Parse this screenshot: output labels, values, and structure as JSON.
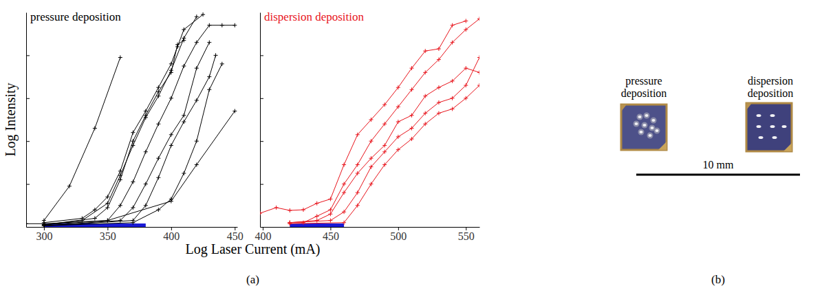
{
  "chart_data": [
    {
      "type": "line",
      "title": "pressure deposition",
      "color": "#000000",
      "marker": "plus",
      "xlim": [
        286,
        452
      ],
      "xticks": [
        300,
        350,
        400,
        450
      ],
      "ylim": [
        0,
        10
      ],
      "yticks": [
        2,
        4,
        6,
        8
      ],
      "tick_labels": "x",
      "highlight": {
        "range": [
          300,
          380
        ],
        "color": "#1a1ad6"
      },
      "series": [
        {
          "x": [
            300,
            320,
            340,
            360
          ],
          "values": [
            0.3,
            1.9,
            4.6,
            7.9
          ]
        },
        {
          "x": [
            300,
            330,
            340,
            350,
            360,
            370,
            380,
            390,
            400,
            405,
            410,
            425
          ],
          "values": [
            0.2,
            0.4,
            0.8,
            1.4,
            2.6,
            4.4,
            5.4,
            6.5,
            7.6,
            8.4,
            9.2,
            9.9
          ]
        },
        {
          "x": [
            300,
            330,
            350,
            360,
            370,
            380,
            390,
            400,
            410,
            420
          ],
          "values": [
            0.1,
            0.3,
            1.1,
            2.4,
            3.8,
            5.1,
            6.1,
            7.3,
            8.8,
            9.8
          ]
        },
        {
          "x": [
            300,
            340,
            350,
            360,
            370,
            380,
            390,
            400,
            405,
            410
          ],
          "values": [
            0.1,
            0.4,
            0.9,
            2.2,
            4.0,
            5.2,
            6.3,
            7.2,
            8.5,
            8.7
          ]
        },
        {
          "x": [
            300,
            350,
            360,
            370,
            380,
            390,
            400,
            410,
            420,
            430,
            440,
            450
          ],
          "values": [
            0.1,
            0.3,
            1.0,
            2.1,
            3.5,
            4.8,
            6.0,
            7.5,
            8.6,
            9.4,
            9.4,
            9.4
          ]
        },
        {
          "x": [
            300,
            360,
            370,
            380,
            390,
            400,
            410,
            420,
            430
          ],
          "values": [
            0.05,
            0.3,
            0.9,
            2.0,
            3.2,
            4.3,
            5.2,
            7.4,
            8.6
          ]
        },
        {
          "x": [
            300,
            370,
            380,
            390,
            400,
            410,
            420,
            430,
            435
          ],
          "values": [
            0.05,
            0.3,
            1.0,
            2.3,
            3.8,
            4.9,
            5.9,
            7.0,
            8.0
          ]
        },
        {
          "x": [
            300,
            370,
            390,
            400,
            410,
            420,
            430,
            440
          ],
          "values": [
            0.05,
            0.2,
            0.8,
            1.3,
            2.5,
            4.0,
            6.4,
            7.6
          ]
        },
        {
          "x": [
            286,
            300,
            350,
            400,
            420,
            450
          ],
          "values": [
            0.15,
            0.15,
            0.3,
            1.2,
            2.9,
            5.4
          ]
        }
      ]
    },
    {
      "type": "line",
      "title": "dispersion deposition",
      "color": "#e8141c",
      "marker": "plus",
      "xlim": [
        398,
        560
      ],
      "xticks": [
        400,
        450,
        500,
        550
      ],
      "ylim": [
        0,
        10
      ],
      "yticks": [
        2,
        4,
        6,
        8
      ],
      "tick_labels": "x",
      "highlight": {
        "range": [
          420,
          460
        ],
        "color": "#1a1ad6"
      },
      "series": [
        {
          "x": [
            398,
            410,
            420,
            430,
            440,
            450,
            460,
            470,
            480,
            490,
            500,
            510,
            520,
            530,
            540,
            550
          ],
          "values": [
            0.64,
            0.9,
            0.77,
            0.8,
            1.1,
            1.3,
            2.9,
            4.3,
            5.0,
            5.7,
            6.5,
            7.4,
            8.2,
            8.3,
            9.4,
            9.6
          ]
        },
        {
          "x": [
            420,
            430,
            440,
            450,
            460,
            470,
            480,
            490,
            500,
            510,
            520,
            530,
            540,
            550,
            560
          ],
          "values": [
            0.2,
            0.2,
            0.5,
            0.8,
            2.0,
            2.9,
            4.0,
            4.8,
            5.6,
            6.4,
            7.2,
            7.8,
            8.6,
            9.2,
            9.7
          ]
        },
        {
          "x": [
            420,
            440,
            450,
            460,
            470,
            480,
            490,
            500,
            510,
            520,
            530,
            540,
            550,
            560
          ],
          "values": [
            0.2,
            0.3,
            0.6,
            1.6,
            2.5,
            3.2,
            3.8,
            4.9,
            5.2,
            6.1,
            6.5,
            6.8,
            7.4,
            7.2
          ]
        },
        {
          "x": [
            420,
            450,
            460,
            470,
            480,
            490,
            500,
            510,
            520,
            530,
            540,
            550,
            560
          ],
          "values": [
            0.2,
            0.3,
            0.7,
            1.6,
            2.8,
            3.5,
            4.2,
            4.6,
            5.3,
            5.8,
            6.0,
            6.6,
            7.9
          ]
        },
        {
          "x": [
            420,
            460,
            470,
            480,
            490,
            500,
            510,
            520,
            530,
            540,
            550,
            560
          ],
          "values": [
            0.15,
            0.2,
            1.0,
            2.0,
            2.9,
            3.6,
            4.1,
            4.8,
            5.3,
            5.5,
            6.0,
            6.6
          ]
        }
      ]
    }
  ],
  "figure": {
    "xlabel": "Log Laser Current (mA)",
    "ylabel": "Log Intensity",
    "panel_label": "(a)",
    "photo": {
      "labels": [
        "pressure deposition",
        "dispersion deposition"
      ],
      "scale_bar": "10 mm",
      "panel_label": "(b)"
    }
  }
}
